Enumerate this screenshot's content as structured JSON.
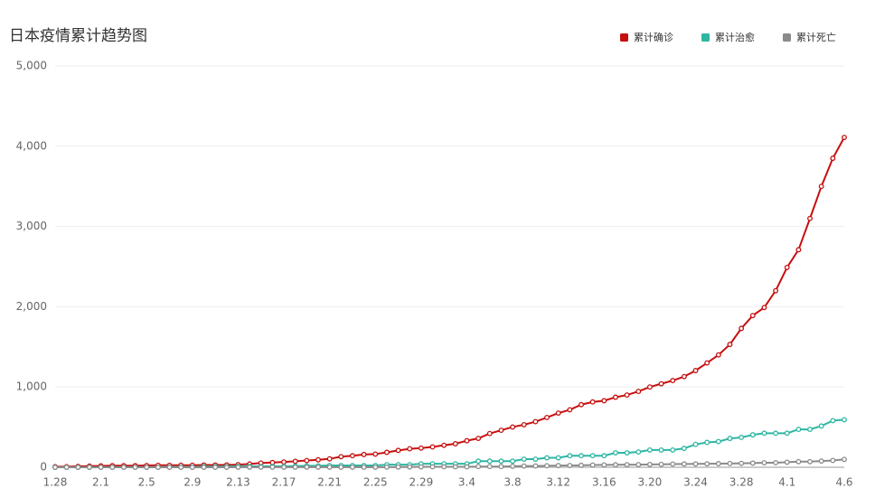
{
  "chart_data": {
    "type": "line",
    "title": "日本疫情累计趋势图",
    "categories": [
      "1.28",
      null,
      null,
      null,
      "2.1",
      null,
      null,
      null,
      "2.5",
      null,
      null,
      null,
      "2.9",
      null,
      null,
      null,
      "2.13",
      null,
      null,
      null,
      "2.17",
      null,
      null,
      null,
      "2.21",
      null,
      null,
      null,
      "2.25",
      null,
      null,
      null,
      "2.29",
      null,
      null,
      null,
      "3.4",
      null,
      null,
      null,
      "3.8",
      null,
      null,
      null,
      "3.12",
      null,
      null,
      null,
      "3.16",
      null,
      null,
      null,
      "3.20",
      null,
      null,
      null,
      "3.24",
      null,
      null,
      null,
      "3.28",
      null,
      null,
      null,
      "4.1",
      null,
      null,
      null,
      null,
      "4.6"
    ],
    "series": [
      {
        "name": "累计确诊",
        "color": "#c70f0f",
        "values": [
          7,
          7,
          11,
          14,
          17,
          20,
          20,
          20,
          22,
          25,
          25,
          26,
          26,
          28,
          28,
          29,
          33,
          41,
          53,
          59,
          66,
          74,
          84,
          93,
          105,
          132,
          144,
          159,
          164,
          186,
          210,
          230,
          239,
          254,
          274,
          293,
          331,
          360,
          420,
          461,
          502,
          530,
          568,
          620,
          675,
          716,
          780,
          814,
          829,
          873,
          900,
          945,
          1000,
          1040,
          1080,
          1130,
          1205,
          1300,
          1400,
          1530,
          1730,
          1890,
          1990,
          2200,
          2490,
          2710,
          3100,
          3500,
          3850,
          4110
        ]
      },
      {
        "name": "累计治愈",
        "color": "#2db6a3",
        "values": [
          0,
          0,
          0,
          0,
          1,
          1,
          1,
          1,
          1,
          1,
          4,
          4,
          4,
          9,
          9,
          9,
          12,
          12,
          12,
          12,
          12,
          14,
          18,
          18,
          22,
          22,
          22,
          22,
          22,
          32,
          32,
          32,
          43,
          43,
          43,
          43,
          43,
          76,
          76,
          76,
          76,
          101,
          101,
          118,
          118,
          144,
          144,
          144,
          144,
          180,
          180,
          191,
          215,
          215,
          215,
          235,
          285,
          310,
          320,
          359,
          372,
          404,
          424,
          424,
          424,
          472,
          472,
          514,
          581,
          592
        ]
      },
      {
        "name": "累计死亡",
        "color": "#8a8a8a",
        "values": [
          0,
          0,
          0,
          0,
          0,
          0,
          0,
          0,
          0,
          0,
          0,
          0,
          0,
          0,
          0,
          0,
          1,
          1,
          1,
          1,
          1,
          1,
          1,
          1,
          1,
          1,
          1,
          1,
          1,
          2,
          3,
          4,
          5,
          6,
          6,
          6,
          6,
          9,
          9,
          9,
          12,
          15,
          16,
          19,
          21,
          22,
          24,
          28,
          29,
          31,
          32,
          33,
          35,
          36,
          40,
          41,
          42,
          43,
          45,
          47,
          49,
          52,
          56,
          57,
          63,
          70,
          70,
          77,
          85,
          98
        ]
      }
    ],
    "ylim": [
      0,
      5000
    ],
    "yticks": [
      0,
      {
        "value": 1000,
        "label": "1,000"
      },
      {
        "value": 2000,
        "label": "2,000"
      },
      {
        "value": 3000,
        "label": "3,000"
      },
      {
        "value": 4000,
        "label": "4,000"
      },
      {
        "value": 5000,
        "label": "5,000"
      }
    ],
    "grid": true
  }
}
